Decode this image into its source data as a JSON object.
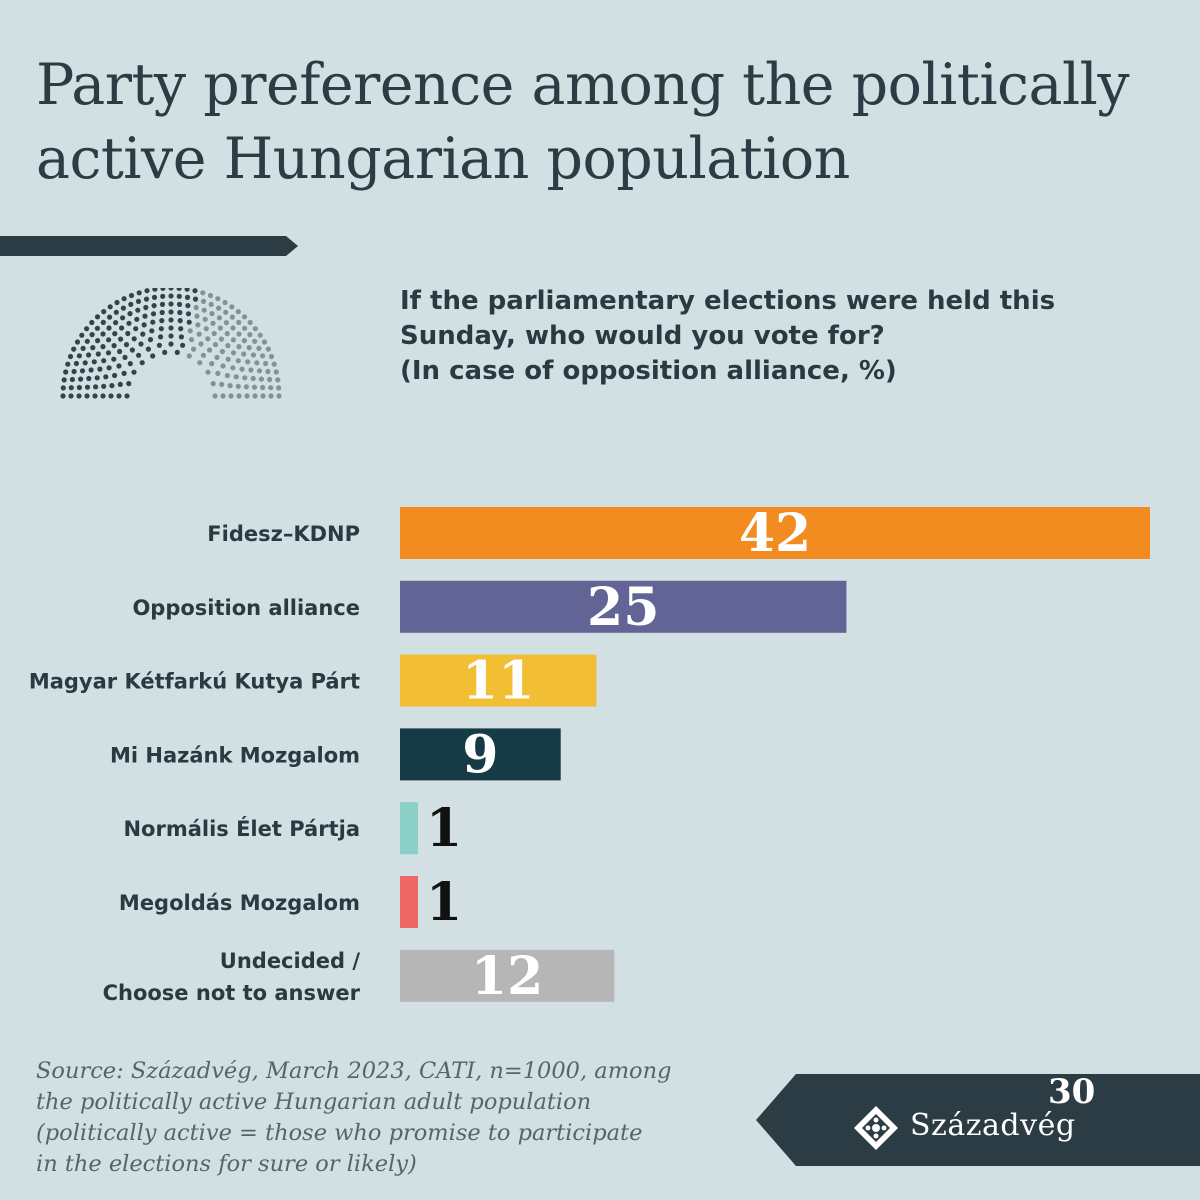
{
  "header": {
    "title_line1": "Party preference among the politically",
    "title_line2": "active Hungarian population"
  },
  "question": {
    "line1": "If the parliamentary elections were held this",
    "line2": "Sunday, who would you vote for?",
    "line3": "(In case of opposition alliance, %)"
  },
  "chart_data": {
    "type": "bar",
    "orientation": "horizontal",
    "categories": [
      [
        "Fidesz–KDNP"
      ],
      [
        "Opposition alliance"
      ],
      [
        "Magyar Kétfarkú Kutya Párt"
      ],
      [
        "Mi Hazánk Mozgalom"
      ],
      [
        "Normális Élet Pártja"
      ],
      [
        "Megoldás Mozgalom"
      ],
      [
        "Undecided /",
        "Choose not to answer"
      ]
    ],
    "values": [
      42,
      25,
      11,
      9,
      1,
      1,
      12
    ],
    "colors": [
      "#f28c21",
      "#636496",
      "#f2be33",
      "#163a46",
      "#8ccfc6",
      "#ee6666",
      "#b6b6b6"
    ],
    "value_label_colors": [
      "#ffffff",
      "#ffffff",
      "#ffffff",
      "#ffffff",
      "#111111",
      "#111111",
      "#ffffff"
    ],
    "xlim": [
      0,
      42
    ]
  },
  "footer": {
    "source_lines": [
      "Source: Századvég, March 2023, CATI, n=1000, among",
      "the politically active Hungarian adult population",
      "(politically active = those who promise to participate",
      "in the elections for sure or likely)"
    ],
    "logo_text": "Századvég",
    "logo_number": "30",
    "logo_icon": "diamond-ornament-icon"
  },
  "colors": {
    "background": "#d2e0e4",
    "dark": "#2c3c44",
    "hemicycle_dark": "#33434b",
    "hemicycle_light": "#7d9498"
  }
}
